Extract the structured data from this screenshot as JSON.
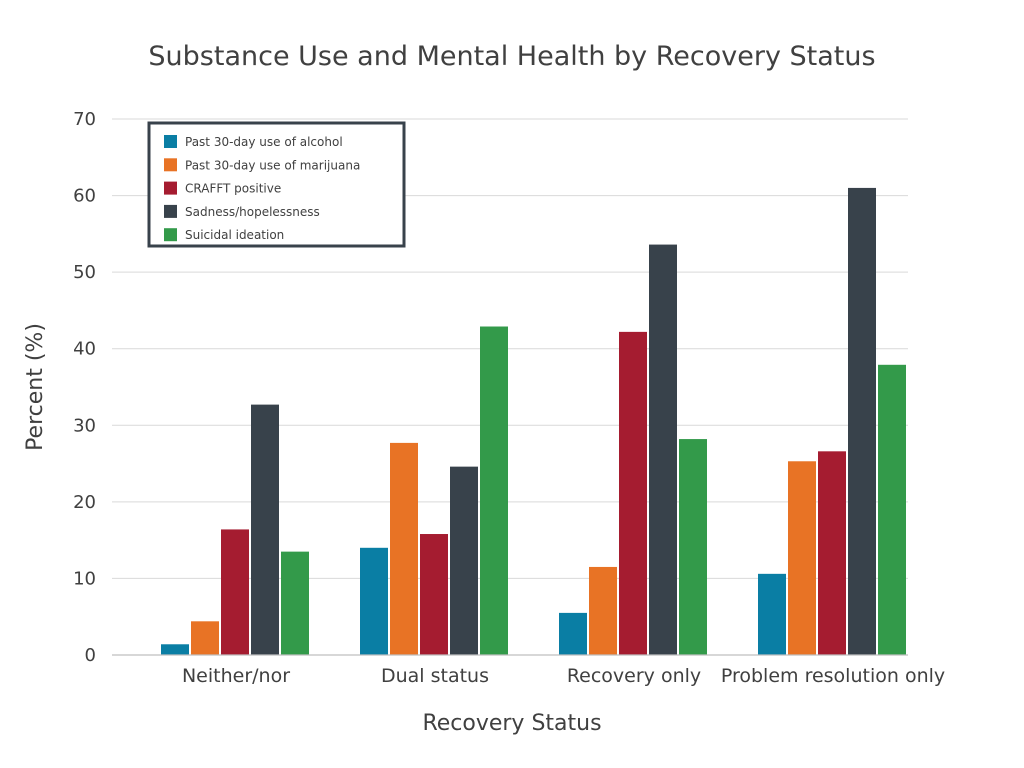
{
  "chart_data": {
    "type": "bar",
    "title": "Substance Use and Mental Health by Recovery Status",
    "xlabel": "Recovery Status",
    "ylabel": "Percent (%)",
    "ylim": [
      0,
      70
    ],
    "yticks": [
      0,
      10,
      20,
      30,
      40,
      50,
      60,
      70
    ],
    "grid": true,
    "legend_position": "top-left",
    "categories": [
      "Neither/nor",
      "Dual status",
      "Recovery only",
      "Problem resolution only"
    ],
    "series": [
      {
        "name": "Past 30-day use of alcohol",
        "color": "#0a7ea4",
        "values": [
          1.4,
          14.0,
          5.5,
          10.6
        ]
      },
      {
        "name": "Past 30-day use of marijuana",
        "color": "#e87325",
        "values": [
          4.4,
          27.7,
          11.5,
          25.3
        ]
      },
      {
        "name": "CRAFFT positive",
        "color": "#a51c30",
        "values": [
          16.4,
          15.8,
          42.2,
          26.6
        ]
      },
      {
        "name": "Sadness/hopelessness",
        "color": "#38424b",
        "values": [
          32.7,
          24.6,
          53.6,
          61.0
        ]
      },
      {
        "name": "Suicidal ideation",
        "color": "#339a4a",
        "values": [
          13.5,
          42.9,
          28.2,
          37.9
        ]
      }
    ]
  }
}
